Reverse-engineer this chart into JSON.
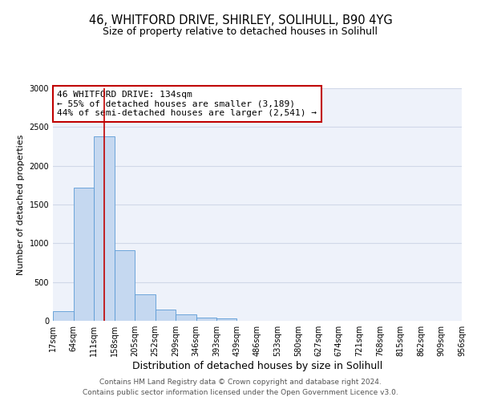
{
  "title1": "46, WHITFORD DRIVE, SHIRLEY, SOLIHULL, B90 4YG",
  "title2": "Size of property relative to detached houses in Solihull",
  "xlabel": "Distribution of detached houses by size in Solihull",
  "ylabel": "Number of detached properties",
  "bin_edges": [
    17,
    64,
    111,
    158,
    205,
    252,
    299,
    346,
    393,
    439,
    486,
    533,
    580,
    627,
    674,
    721,
    768,
    815,
    862,
    909,
    956
  ],
  "bar_heights": [
    120,
    1720,
    2380,
    910,
    340,
    150,
    85,
    40,
    30,
    5,
    0,
    0,
    0,
    0,
    0,
    0,
    0,
    0,
    0,
    0
  ],
  "bar_color": "#c5d8f0",
  "bar_edge_color": "#5b9bd5",
  "grid_color": "#d0d8e8",
  "bg_color": "#eef2fa",
  "vline_x": 134,
  "vline_color": "#c00000",
  "annotation_text": "46 WHITFORD DRIVE: 134sqm\n← 55% of detached houses are smaller (3,189)\n44% of semi-detached houses are larger (2,541) →",
  "annotation_box_color": "#ffffff",
  "annotation_border_color": "#c00000",
  "ylim": [
    0,
    3000
  ],
  "yticks": [
    0,
    500,
    1000,
    1500,
    2000,
    2500,
    3000
  ],
  "footer1": "Contains HM Land Registry data © Crown copyright and database right 2024.",
  "footer2": "Contains public sector information licensed under the Open Government Licence v3.0.",
  "title1_fontsize": 10.5,
  "title2_fontsize": 9,
  "xlabel_fontsize": 9,
  "ylabel_fontsize": 8,
  "tick_fontsize": 7,
  "annotation_fontsize": 8,
  "footer_fontsize": 6.5
}
